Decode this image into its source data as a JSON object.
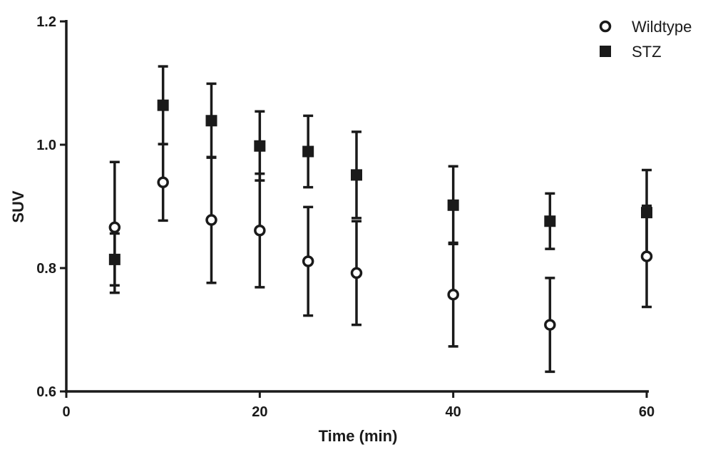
{
  "chart_data": {
    "type": "scatter",
    "title": "",
    "xlabel": "Time (min)",
    "ylabel": "SUV",
    "xlim": [
      0,
      60
    ],
    "ylim": [
      0.6,
      1.2
    ],
    "x_ticks": [
      0,
      20,
      40,
      60
    ],
    "y_ticks": [
      0.6,
      0.8,
      1.0,
      1.2
    ],
    "x_tick_labels": [
      "0",
      "20",
      "40",
      "60"
    ],
    "y_tick_labels": [
      "0.6",
      "0.8",
      "1.0",
      "1.2"
    ],
    "legend_position": "top-right",
    "grid": false,
    "series": [
      {
        "name": "Wildtype",
        "marker": "open-circle",
        "color": "#1a1a1a",
        "points": [
          {
            "x": 5,
            "y": 0.866,
            "err": 0.106
          },
          {
            "x": 10,
            "y": 0.939,
            "err": 0.062
          },
          {
            "x": 15,
            "y": 0.878,
            "err": 0.102
          },
          {
            "x": 20,
            "y": 0.861,
            "err": 0.092
          },
          {
            "x": 25,
            "y": 0.811,
            "err": 0.088
          },
          {
            "x": 30,
            "y": 0.792,
            "err": 0.084
          },
          {
            "x": 40,
            "y": 0.757,
            "err": 0.084
          },
          {
            "x": 50,
            "y": 0.708,
            "err": 0.076
          },
          {
            "x": 60,
            "y": 0.819,
            "err": 0.082
          }
        ]
      },
      {
        "name": "STZ",
        "marker": "filled-square",
        "color": "#1a1a1a",
        "points": [
          {
            "x": 5,
            "y": 0.814,
            "err": 0.042
          },
          {
            "x": 10,
            "y": 1.064,
            "err": 0.063
          },
          {
            "x": 15,
            "y": 1.039,
            "err": 0.06
          },
          {
            "x": 20,
            "y": 0.998,
            "err": 0.056
          },
          {
            "x": 25,
            "y": 0.989,
            "err": 0.058
          },
          {
            "x": 30,
            "y": 0.951,
            "err": 0.07
          },
          {
            "x": 40,
            "y": 0.902,
            "err": 0.063
          },
          {
            "x": 50,
            "y": 0.876,
            "err": 0.045
          },
          {
            "x": 60,
            "y": 0.89,
            "err": 0.069
          }
        ]
      }
    ]
  }
}
